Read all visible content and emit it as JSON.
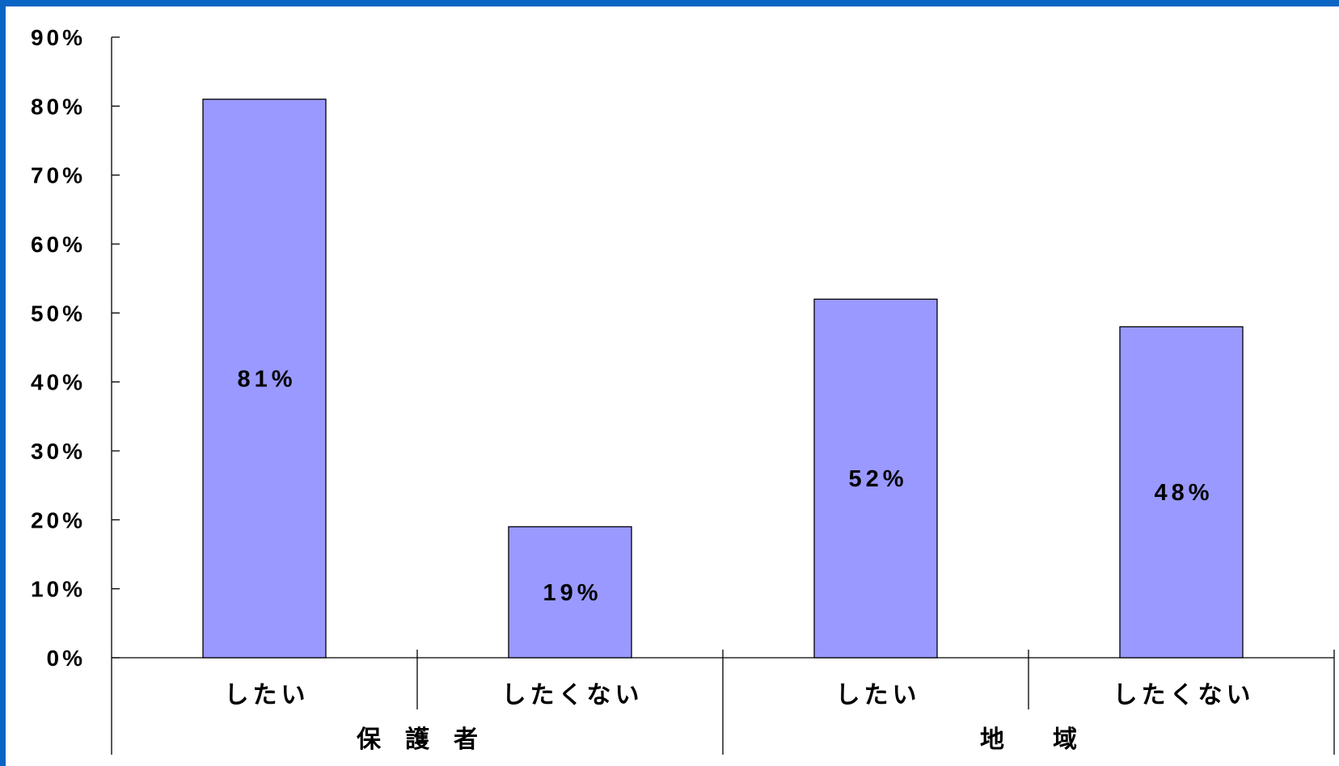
{
  "chart_data": {
    "type": "bar",
    "title": "",
    "xlabel": "",
    "ylabel": "",
    "ylim": [
      0,
      90
    ],
    "yticks": [
      0,
      10,
      20,
      30,
      40,
      50,
      60,
      70,
      80,
      90
    ],
    "ytick_labels": [
      "0%",
      "10%",
      "20%",
      "30%",
      "40%",
      "50%",
      "60%",
      "70%",
      "80%",
      "90%"
    ],
    "groups": [
      {
        "label": "保　護　者",
        "categories": [
          "したい",
          "したくない"
        ]
      },
      {
        "label": "地　　域",
        "categories": [
          "したい",
          "したくない"
        ]
      }
    ],
    "categories": [
      "したい",
      "したくない",
      "したい",
      "したくない"
    ],
    "values": [
      81,
      19,
      52,
      48
    ],
    "data_labels": [
      "81%",
      "19%",
      "52%",
      "48%"
    ],
    "grid": false,
    "legend": "none",
    "bar_color": "#9999ff",
    "frame_color": "#0a64c4"
  }
}
